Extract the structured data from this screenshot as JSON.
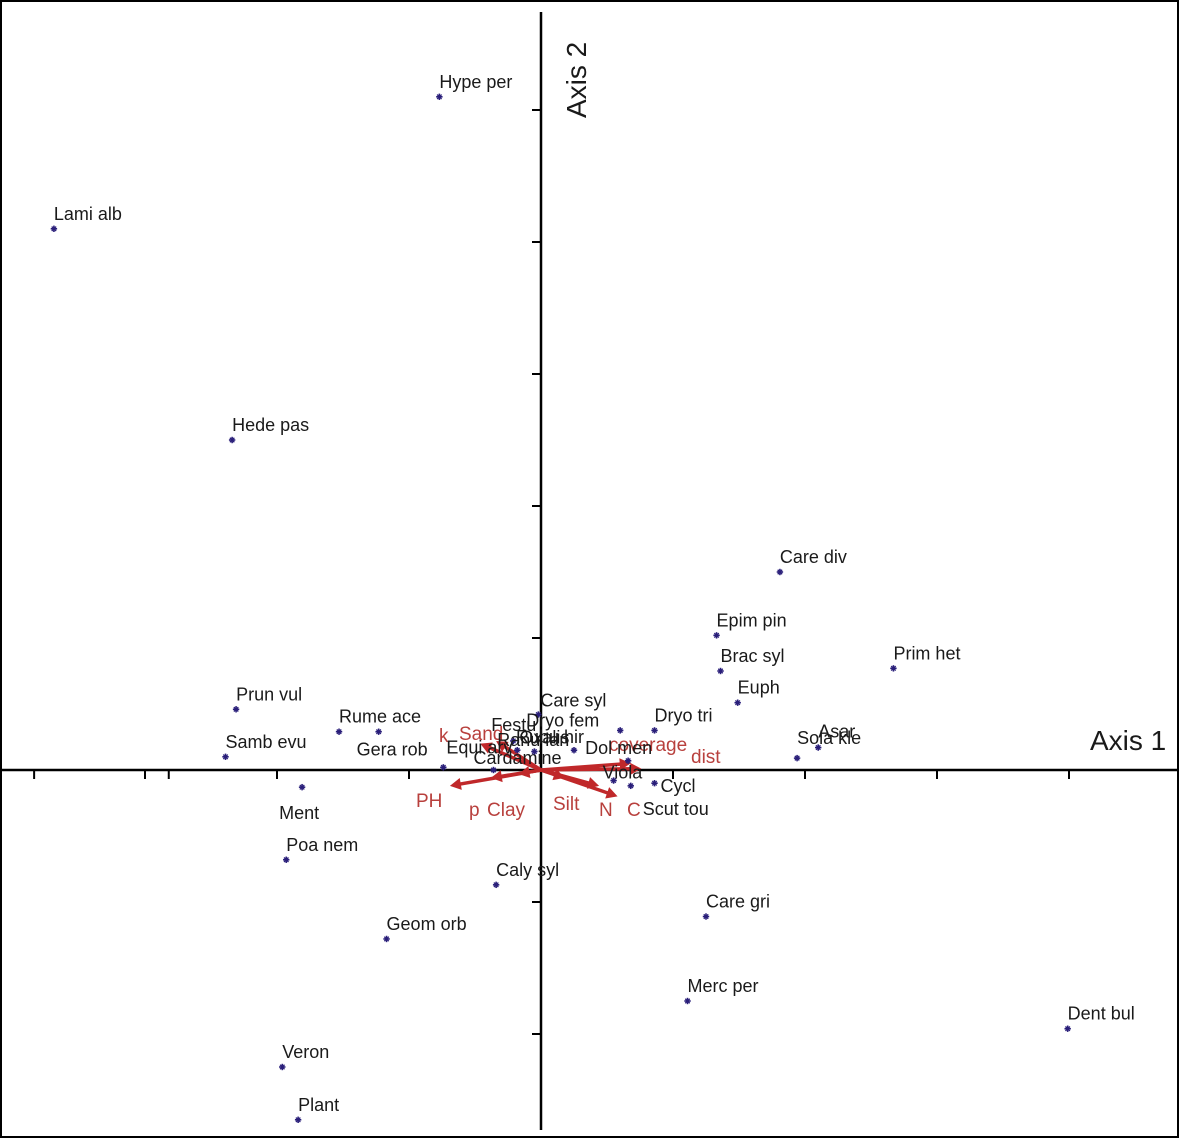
{
  "chart_data": {
    "type": "scatter",
    "title": "",
    "xlabel": "Axis 1",
    "ylabel": "Axis 2",
    "xlim": [
      -3.7,
      4.6
    ],
    "ylim": [
      -2.7,
      5.5
    ],
    "grid": false,
    "colors": {
      "species": "#2a1f7a",
      "environment": "#c0282a",
      "environment_label": "#b8403d",
      "axis": "#000000",
      "text": "#1a1a1a"
    },
    "species": [
      {
        "label": "Hype per",
        "x": -0.77,
        "y": 5.1
      },
      {
        "label": "Lami alb",
        "x": -3.69,
        "y": 4.1
      },
      {
        "label": "Hede pas",
        "x": -2.34,
        "y": 2.5
      },
      {
        "label": "Care div",
        "x": 1.81,
        "y": 1.5
      },
      {
        "label": "Epim pin",
        "x": 1.33,
        "y": 1.02
      },
      {
        "label": "Brac syl",
        "x": 1.36,
        "y": 0.75
      },
      {
        "label": "Prim het",
        "x": 2.67,
        "y": 0.77
      },
      {
        "label": "Euph",
        "x": 1.49,
        "y": 0.51
      },
      {
        "label": "Prun vul",
        "x": -2.31,
        "y": 0.46
      },
      {
        "label": "Rume ace",
        "x": -1.53,
        "y": 0.29
      },
      {
        "label": "Care syl",
        "x": -0.02,
        "y": 0.42
      },
      {
        "label": "Dryo tri",
        "x": 0.86,
        "y": 0.3
      },
      {
        "label": "Dryo fem",
        "x": 0.6,
        "y": 0.3
      },
      {
        "label": "Festu",
        "x": -0.21,
        "y": 0.22
      },
      {
        "label": "Samb evu",
        "x": -2.39,
        "y": 0.1
      },
      {
        "label": "Gera rob",
        "x": -1.23,
        "y": 0.29
      },
      {
        "label": "Equi arv",
        "x": -0.74,
        "y": 0.02
      },
      {
        "label": "Ranu lan",
        "x": -0.18,
        "y": 0.15
      },
      {
        "label": "Cardamine",
        "x": -0.36,
        "y": 0.0
      },
      {
        "label": "Rubu hir",
        "x": 0.25,
        "y": 0.15
      },
      {
        "label": "Oxalis",
        "x": -0.05,
        "y": 0.14
      },
      {
        "label": "Dol men",
        "x": 0.66,
        "y": 0.07
      },
      {
        "label": "Viola",
        "x": 0.55,
        "y": -0.08
      },
      {
        "label": "Asar",
        "x": 2.1,
        "y": 0.17
      },
      {
        "label": "Sola kle",
        "x": 1.94,
        "y": 0.09
      },
      {
        "label": "Cycl",
        "x": 0.86,
        "y": -0.1
      },
      {
        "label": "Scut tou",
        "x": 0.68,
        "y": -0.12
      },
      {
        "label": "Ment",
        "x": -1.81,
        "y": -0.13
      },
      {
        "label": "Poa nem",
        "x": -1.93,
        "y": -0.68
      },
      {
        "label": "Caly syl",
        "x": -0.34,
        "y": -0.87
      },
      {
        "label": "Geom orb",
        "x": -1.17,
        "y": -1.28
      },
      {
        "label": "Care gri",
        "x": 1.25,
        "y": -1.11
      },
      {
        "label": "Merc per",
        "x": 1.11,
        "y": -1.75
      },
      {
        "label": "Dent bul",
        "x": 3.99,
        "y": -1.96
      },
      {
        "label": "Veron",
        "x": -1.96,
        "y": -2.25
      },
      {
        "label": "Plant",
        "x": -1.84,
        "y": -2.65
      }
    ],
    "environment": [
      {
        "label": "k",
        "x": -0.46,
        "y": 0.2
      },
      {
        "label": "Sand",
        "x": -0.34,
        "y": 0.22
      },
      {
        "label": "PH",
        "x": -0.69,
        "y": -0.12
      },
      {
        "label": "p",
        "x": -0.38,
        "y": -0.06
      },
      {
        "label": "Clay",
        "x": -0.17,
        "y": -0.03
      },
      {
        "label": "Silt",
        "x": 0.18,
        "y": -0.06
      },
      {
        "label": "N",
        "x": 0.44,
        "y": -0.12
      },
      {
        "label": "C",
        "x": 0.58,
        "y": -0.2
      },
      {
        "label": "coverage",
        "x": 0.68,
        "y": 0.05
      },
      {
        "label": "dist",
        "x": 0.76,
        "y": 0.01
      }
    ]
  }
}
